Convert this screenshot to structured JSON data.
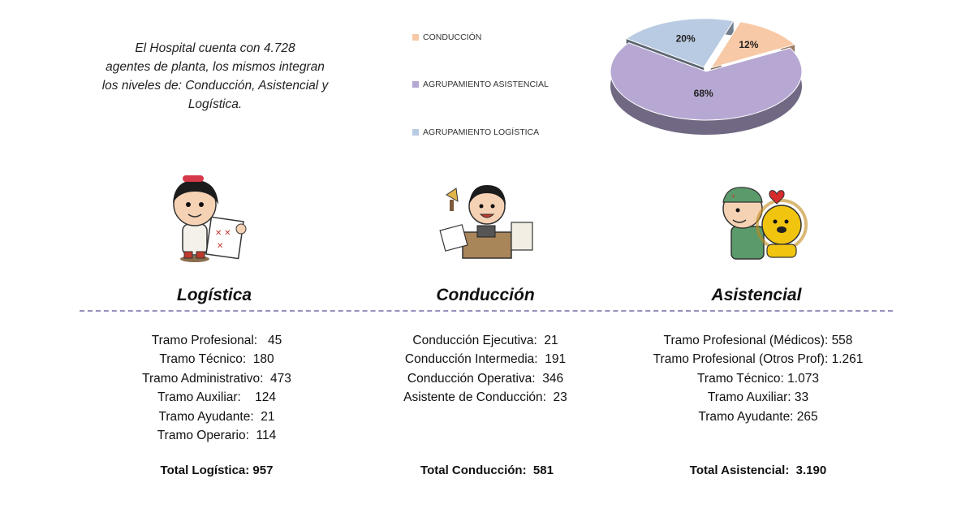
{
  "intro": "El Hospital cuenta con 4.728\nagentes de planta, los mismos  integran\nlos niveles de: Conducción, Asistencial y\nLogística.",
  "chart_data": {
    "type": "pie",
    "slices": [
      {
        "label": "CONDUCCIÓN",
        "value": 12,
        "display": "12%",
        "color": "#f7c9a6"
      },
      {
        "label": "AGRUPAMIENTO ASISTENCIAL",
        "value": 68,
        "display": "68%",
        "color": "#b7a8d3"
      },
      {
        "label": "AGRUPAMIENTO LOGÍSTICA",
        "value": 20,
        "display": "20%",
        "color": "#b8cbe2"
      }
    ],
    "legend_position": "left"
  },
  "columns": [
    {
      "title": "Logística",
      "items": [
        "Tramo Profesional:   45",
        "Tramo Técnico:  180",
        "Tramo Administrativo:  473",
        "Tramo Auxiliar:    124",
        "Tramo Ayudante:  21",
        "Tramo Operario:  114"
      ],
      "total": "Total Logística: 957"
    },
    {
      "title": "Conducción",
      "items": [
        "Conducción Ejecutiva:  21",
        "Conducción Intermedia:  191",
        "Conducción Operativa:  346",
        "Asistente de Conducción:  23"
      ],
      "total": "Total Conducción:  581"
    },
    {
      "title": "Asistencial",
      "items": [
        "Tramo Profesional (Médicos): 558",
        "Tramo Profesional (Otros Prof): 1.261",
        "Tramo Técnico: 1.073",
        "Tramo Auxiliar: 33",
        "Tramo Ayudante: 265"
      ],
      "total": "Total Asistencial:  3.190"
    }
  ]
}
